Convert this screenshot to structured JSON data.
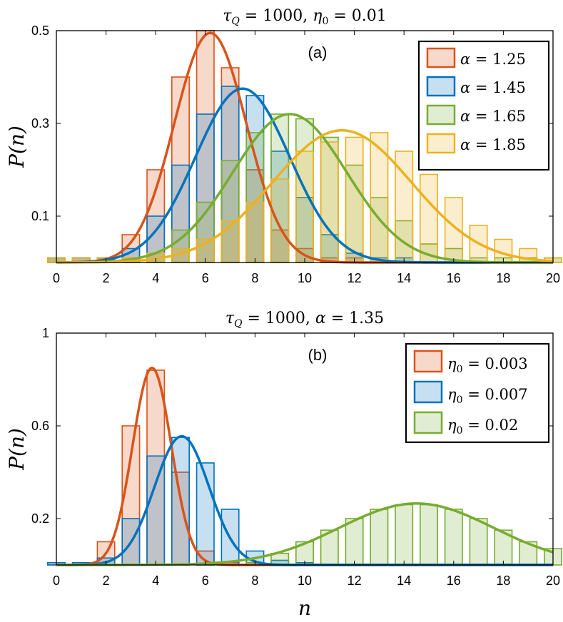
{
  "colors": {
    "orange": "#D95319",
    "blue": "#0072BD",
    "green": "#77AC30",
    "yellow": "#EDB120",
    "axis": "#000000"
  },
  "chart_data": [
    {
      "type": "bar",
      "panel_label": "(a)",
      "title": "τ_Q = 1000, η₀ = 0.01",
      "title_parts": {
        "tau": "τ",
        "tau_sub": "Q",
        "eq1": " = 1000, ",
        "eta": "η",
        "eta_sub": "0",
        "eq2": " = 0.01"
      },
      "xlabel": "",
      "ylabel": "P(n)",
      "xlim": [
        0,
        20
      ],
      "ylim": [
        0,
        0.5
      ],
      "xticks": [
        "0",
        "2",
        "4",
        "6",
        "8",
        "10",
        "12",
        "14",
        "16",
        "18",
        "20"
      ],
      "yticks": [
        "0.1",
        "0.3",
        "0.5"
      ],
      "legend_location": "top-right",
      "series": [
        {
          "name": "α = 1.25",
          "sym": "α",
          "val": " = 1.25",
          "color_key": "orange",
          "fit": {
            "peak": 0.495,
            "mu": 6.2,
            "sigma": 1.45
          },
          "bars": [
            0.01,
            0.01,
            0.01,
            0.06,
            0.2,
            0.4,
            0.5,
            0.42,
            0.2,
            0.07,
            0.03,
            0.01,
            0.01,
            0,
            0,
            0,
            0,
            0,
            0,
            0,
            0
          ]
        },
        {
          "name": "α = 1.45",
          "sym": "α",
          "val": " = 1.45",
          "color_key": "blue",
          "fit": {
            "peak": 0.375,
            "mu": 7.5,
            "sigma": 1.9
          },
          "bars": [
            0.01,
            0.01,
            0.01,
            0.03,
            0.1,
            0.21,
            0.32,
            0.38,
            0.36,
            0.24,
            0.14,
            0.06,
            0.02,
            0.01,
            0.01,
            0,
            0,
            0,
            0,
            0,
            0
          ]
        },
        {
          "name": "α = 1.65",
          "sym": "α",
          "val": " = 1.65",
          "color_key": "green",
          "fit": {
            "peak": 0.32,
            "mu": 9.4,
            "sigma": 2.3
          },
          "bars": [
            0.01,
            0,
            0.01,
            0.01,
            0.02,
            0.07,
            0.13,
            0.22,
            0.28,
            0.32,
            0.31,
            0.27,
            0.21,
            0.14,
            0.09,
            0.04,
            0.03,
            0.01,
            0.01,
            0.01,
            0.01
          ]
        },
        {
          "name": "α = 1.85",
          "sym": "α",
          "val": " = 1.85",
          "color_key": "yellow",
          "fit": {
            "peak": 0.285,
            "mu": 11.5,
            "sigma": 2.8
          },
          "bars": [
            0.01,
            0.01,
            0.01,
            0.01,
            0.02,
            0.03,
            0.05,
            0.09,
            0.13,
            0.18,
            0.24,
            0.26,
            0.27,
            0.28,
            0.24,
            0.19,
            0.14,
            0.08,
            0.05,
            0.03,
            0.01
          ]
        }
      ]
    },
    {
      "type": "bar",
      "panel_label": "(b)",
      "title": "τ_Q = 1000, α = 1.35",
      "title_parts": {
        "tau": "τ",
        "tau_sub": "Q",
        "eq1": " = 1000, ",
        "eta": "α",
        "eta_sub": "",
        "eq2": " = 1.35"
      },
      "xlabel": "n",
      "ylabel": "P(n)",
      "xlim": [
        0,
        20
      ],
      "ylim": [
        0,
        1
      ],
      "xticks": [
        "0",
        "2",
        "4",
        "6",
        "8",
        "10",
        "12",
        "14",
        "16",
        "18",
        "20"
      ],
      "yticks": [
        "0.2",
        "0.6",
        "1"
      ],
      "legend_location": "top-right",
      "series": [
        {
          "name": "η₀ = 0.003",
          "sym": "η",
          "sub": "0",
          "val": " = 0.003",
          "color_key": "orange",
          "fit": {
            "peak": 0.85,
            "mu": 3.85,
            "sigma": 0.78
          },
          "bars": [
            0.01,
            0.01,
            0.1,
            0.6,
            0.84,
            0.4,
            0.06,
            0.01,
            0,
            0,
            0,
            0,
            0,
            0,
            0,
            0,
            0,
            0,
            0,
            0,
            0
          ]
        },
        {
          "name": "η₀ = 0.007",
          "sym": "η",
          "sub": "0",
          "val": " = 0.007",
          "color_key": "blue",
          "fit": {
            "peak": 0.555,
            "mu": 5.05,
            "sigma": 1.1
          },
          "bars": [
            0.01,
            0.01,
            0.03,
            0.2,
            0.47,
            0.55,
            0.44,
            0.24,
            0.06,
            0.02,
            0.01,
            0,
            0,
            0,
            0,
            0,
            0,
            0,
            0,
            0,
            0
          ]
        },
        {
          "name": "η₀ = 0.02",
          "sym": "η",
          "sub": "0",
          "val": " = 0.02",
          "color_key": "green",
          "fit": {
            "peak": 0.265,
            "mu": 14.5,
            "sigma": 3.1
          },
          "bars": [
            0,
            0,
            0,
            0,
            0,
            0,
            0,
            0,
            0.01,
            0.05,
            0.1,
            0.15,
            0.2,
            0.24,
            0.26,
            0.26,
            0.24,
            0.2,
            0.15,
            0.1,
            0.07
          ]
        }
      ]
    }
  ]
}
